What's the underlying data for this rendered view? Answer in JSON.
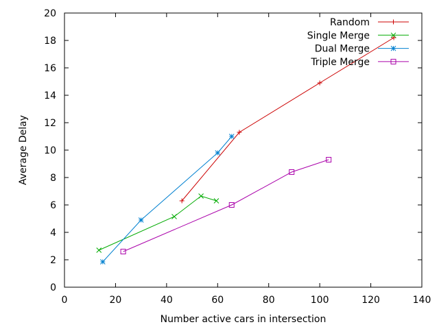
{
  "chart_data": {
    "type": "line",
    "title": "",
    "xlabel": "Number active cars in intersection",
    "ylabel": "Average Delay",
    "xlim": [
      0,
      140
    ],
    "ylim": [
      0,
      20
    ],
    "xticks": [
      0,
      20,
      40,
      60,
      80,
      100,
      120,
      140
    ],
    "yticks": [
      0,
      2,
      4,
      6,
      8,
      10,
      12,
      14,
      16,
      18,
      20
    ],
    "grid": false,
    "legend_position": "top-right",
    "series": [
      {
        "name": "Random",
        "color": "#cc0000",
        "marker": "plus",
        "points": [
          [
            46,
            6.3
          ],
          [
            68.5,
            11.3
          ],
          [
            100,
            14.9
          ],
          [
            129,
            18.2
          ]
        ]
      },
      {
        "name": "Single Merge",
        "color": "#00aa00",
        "marker": "cross",
        "points": [
          [
            13.5,
            2.7
          ],
          [
            43,
            5.15
          ],
          [
            53.5,
            6.65
          ],
          [
            59.5,
            6.3
          ]
        ]
      },
      {
        "name": "Dual Merge",
        "color": "#0080d0",
        "marker": "star",
        "points": [
          [
            15,
            1.85
          ],
          [
            30,
            4.9
          ],
          [
            60,
            9.8
          ],
          [
            65.5,
            11.0
          ]
        ]
      },
      {
        "name": "Triple Merge",
        "color": "#aa00aa",
        "marker": "square",
        "points": [
          [
            23,
            2.6
          ],
          [
            65.5,
            6.0
          ],
          [
            89,
            8.4
          ],
          [
            103.5,
            9.3
          ]
        ]
      }
    ]
  }
}
